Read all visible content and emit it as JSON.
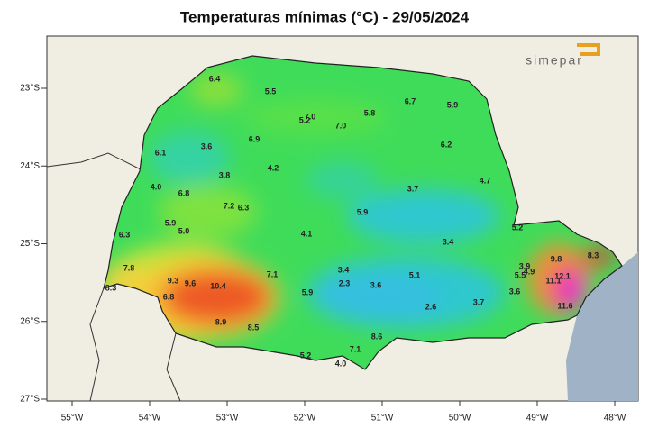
{
  "title": "Temperaturas mínimas (°C) - 29/05/2024",
  "logo": "simepar",
  "lat_labels": [
    "23°S",
    "24°S",
    "25°S",
    "26°S",
    "27°S"
  ],
  "lon_labels": [
    "55°W",
    "54°W",
    "53°W",
    "52°W",
    "51°W",
    "50°W",
    "49°W",
    "48°W"
  ],
  "stations": [
    "6.4",
    "5.5",
    "6.7",
    "5.9",
    "5.8",
    "7.0",
    "5.2",
    "7.0",
    "6.9",
    "3.6",
    "6.2",
    "6.1",
    "3.8",
    "4.2",
    "4.7",
    "4.0",
    "6.8",
    "3.7",
    "7.2",
    "6.3",
    "5.9",
    "5.9",
    "5.0",
    "5.2",
    "6.3",
    "4.1",
    "3.4",
    "7.8",
    "3.4",
    "7.1",
    "9.8",
    "8.3",
    "3.9",
    "4.9",
    "5.5",
    "12.1",
    "9.3",
    "9.6",
    "10.4",
    "8.3",
    "2.3",
    "3.6",
    "5.1",
    "11.1",
    "6.8",
    "5.9",
    "3.6",
    "3.7",
    "2.6",
    "11.6",
    "8.9",
    "8.5",
    "8.6",
    "7.1",
    "5.2",
    "4.0"
  ]
}
